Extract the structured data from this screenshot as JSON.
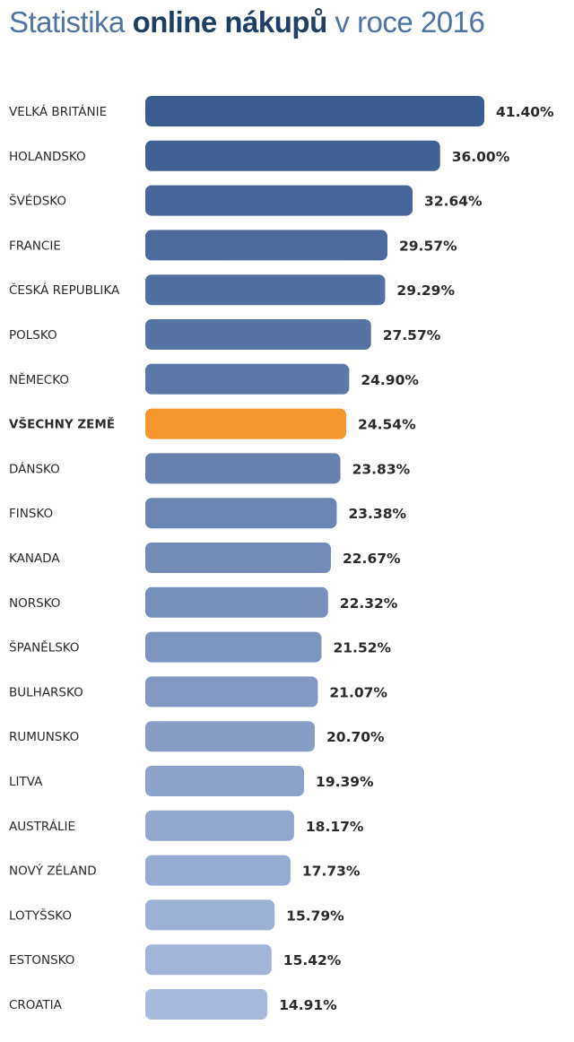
{
  "title": {
    "prefix": "Statistika",
    "bold": "online nákupů",
    "suffix": "v roce 2016"
  },
  "colors": {
    "highlight": "#f5962f",
    "bar_darkest": "#3c5c91",
    "bar_lightest": "#a7b9dd",
    "label_text": "#2a2a2a"
  },
  "chart_data": {
    "type": "bar",
    "orientation": "horizontal",
    "title": "Statistika online nákupů v roce 2016",
    "xlabel": "",
    "ylabel": "",
    "xlim": [
      0,
      41.4
    ],
    "grid": false,
    "value_labels": [
      "41.40%",
      "36.00%",
      "32.64%",
      "29.57%",
      "29.29%",
      "27.57%",
      "24.90%",
      "24.54%",
      "23.83%",
      "23.38%",
      "22.67%",
      "22.32%",
      "21.52%",
      "21.07%",
      "20.70%",
      "19.39%",
      "18.17%",
      "17.73%",
      "15.79%",
      "15.42%",
      "14.91%"
    ],
    "categories": [
      "VELKÁ BRITÁNIE",
      "HOLANDSKO",
      "ŠVÉDSKO",
      "FRANCIE",
      "ČESKÁ REPUBLIKA",
      "POLSKO",
      "NĚMECKO",
      "VŠECHNY ZEMĚ",
      "DÁNSKO",
      "FINSKO",
      "KANADA",
      "NORSKO",
      "ŠPANĚLSKO",
      "BULHARSKO",
      "RUMUNSKO",
      "LITVA",
      "AUSTRÁLIE",
      "NOVÝ ZÉLAND",
      "LOTYŠSKO",
      "ESTONSKO",
      "CROATIA"
    ],
    "values": [
      41.4,
      36.0,
      32.64,
      29.57,
      29.29,
      27.57,
      24.9,
      24.54,
      23.83,
      23.38,
      22.67,
      22.32,
      21.52,
      21.07,
      20.7,
      19.39,
      18.17,
      17.73,
      15.79,
      15.42,
      14.91
    ],
    "highlight_category": "VŠECHNY ZEMĚ"
  }
}
